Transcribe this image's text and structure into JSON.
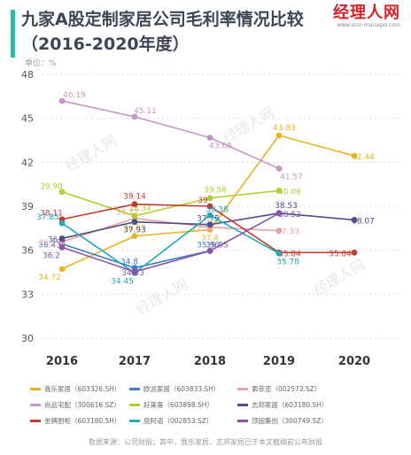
{
  "header": {
    "title_line1": "九家A股定制家居公司毛利率情况比较",
    "title_line2": "（2016-2020年度）",
    "logo_text": "经理人网",
    "logo_url": "www.sino-manager.com",
    "accent_color": "#35b7a8",
    "unit": "单位：%"
  },
  "watermark": "经理人网",
  "source": "数据来源：公司财报；其中，我乐家居、志邦家居已于本文截稿前公布财报",
  "chart_data": {
    "type": "line",
    "x": [
      2016,
      2017,
      2018,
      2019,
      2020
    ],
    "ylim": [
      30,
      48
    ],
    "yticks": [
      30,
      33,
      36,
      39,
      42,
      45,
      48
    ],
    "grid": true,
    "legend_position": "bottom",
    "series": [
      {
        "name": "我乐家居（603326.SH）",
        "color": "#e8b422",
        "values": [
          34.72,
          36.97,
          37.4,
          43.83,
          42.44
        ],
        "labels": [
          "34.72",
          "36.97",
          "37.4",
          "43.83",
          "42.44"
        ]
      },
      {
        "name": "欧派家居（603833.SH）",
        "color": "#3d7fc4",
        "values": [
          36.43,
          34.8,
          35.96,
          null,
          null
        ],
        "labels": [
          "36.43",
          "34.8",
          "35.96",
          "",
          ""
        ]
      },
      {
        "name": "索菲亚（002572.SZ）",
        "color": "#e5a2a8",
        "values": [
          36.57,
          38.17,
          37.57,
          37.33,
          null
        ],
        "labels": [
          "36.57",
          "38.17",
          "37.57",
          "37.33",
          ""
        ]
      },
      {
        "name": "尚品宅配（300616.SZ）",
        "color": "#c796c6",
        "values": [
          46.19,
          45.11,
          43.68,
          41.57,
          null
        ],
        "labels": [
          "46.19",
          "45.11",
          "43.68",
          "41.57",
          ""
        ]
      },
      {
        "name": "好莱客（603898.SH）",
        "color": "#b5cc32",
        "values": [
          39.98,
          38.34,
          39.56,
          40.06,
          null
        ],
        "labels": [
          "39.98",
          "38.34",
          "39.56",
          "40.06",
          ""
        ]
      },
      {
        "name": "志邦家居（603180.SH）",
        "color": "#4d4f86",
        "values": [
          36.8,
          37.93,
          37.75,
          38.53,
          38.07
        ],
        "labels": [
          "36.8",
          "37.93",
          "37.75",
          "38.53",
          "38.07"
        ]
      },
      {
        "name": "金牌厨柜（603180.SH）",
        "color": "#c23b33",
        "values": [
          38.11,
          39.14,
          39,
          35.84,
          35.84
        ],
        "labels": [
          "38.11",
          "39.14",
          "39",
          "35.84",
          "35.84"
        ]
      },
      {
        "name": "皮阿诺（002853.SZ）",
        "color": "#23a9b4",
        "values": [
          37.85,
          34.45,
          38.38,
          35.78,
          null
        ],
        "labels": [
          "37.85",
          "34.45",
          "38.38",
          "35.78",
          ""
        ]
      },
      {
        "name": "顶固集创（300749.SZ）",
        "color": "#8b55a6",
        "values": [
          36.2,
          34.53,
          35.95,
          38.52,
          null
        ],
        "labels": [
          "36.2",
          "34.53",
          "35.95",
          "38.52",
          ""
        ]
      }
    ]
  }
}
